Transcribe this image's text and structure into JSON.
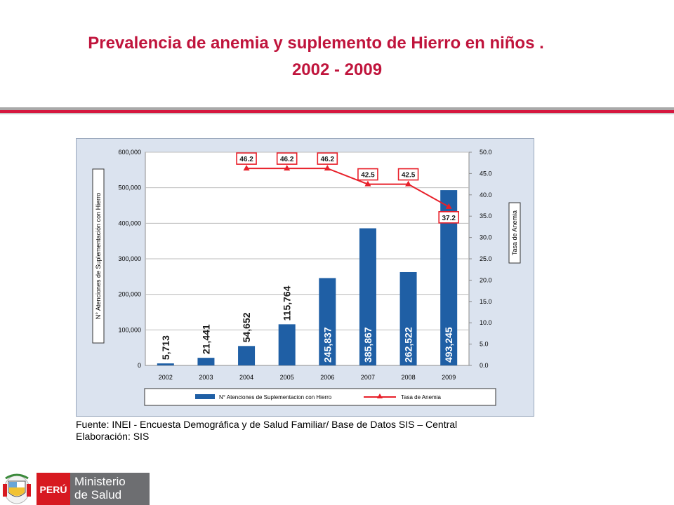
{
  "page": {
    "title_line1": "Prevalencia de anemia y suplemento de Hierro en niños .",
    "title_line2": "2002 - 2009",
    "source_line1": "Fuente: INEI - Encuesta Demográfica y de Salud Familiar/ Base de Datos SIS – Central",
    "source_line2": "Elaboración: SIS",
    "logo_country": "PERÚ",
    "logo_ministry_line1": "Ministerio",
    "logo_ministry_line2": "de Salud"
  },
  "colors": {
    "title": "#c0143c",
    "bar": "#1f5fa5",
    "line": "#e8202a",
    "panel_bg": "#dbe3ef",
    "logo_red": "#d71920",
    "logo_grey": "#6d6e71"
  },
  "chart_data": {
    "type": "bar",
    "categories": [
      "2002",
      "2003",
      "2004",
      "2005",
      "2006",
      "2007",
      "2008",
      "2009"
    ],
    "series": [
      {
        "name": "N° Atenciones de Suplementacion con Hierro",
        "type": "bar",
        "axis": "left",
        "values": [
          5713,
          21441,
          54652,
          115764,
          245837,
          385867,
          262522,
          493245
        ],
        "labels": [
          "5,713",
          "21,441",
          "54,652",
          "115,764",
          "245,837",
          "385,867",
          "262,522",
          "493,245"
        ]
      },
      {
        "name": "Tasa de Anemia",
        "type": "line",
        "axis": "right",
        "values": [
          null,
          null,
          46.2,
          46.2,
          46.2,
          42.5,
          42.5,
          37.2
        ],
        "labels": [
          "",
          "",
          "46.2",
          "46.2",
          "46.2",
          "42.5",
          "42.5",
          "37.2"
        ]
      }
    ],
    "ylabel": "N° Atenciones de Suplementación con Hierro",
    "y2label": "Tasa de Anemia",
    "ylim": [
      0,
      600000
    ],
    "y2lim": [
      0,
      50
    ],
    "yticks": [
      "0",
      "100,000",
      "200,000",
      "300,000",
      "400,000",
      "500,000",
      "600,000"
    ],
    "y2ticks": [
      "0.0",
      "5.0",
      "10.0",
      "15.0",
      "20.0",
      "25.0",
      "30.0",
      "35.0",
      "40.0",
      "45.0",
      "50.0"
    ],
    "grid": true,
    "legend": "bottom"
  }
}
